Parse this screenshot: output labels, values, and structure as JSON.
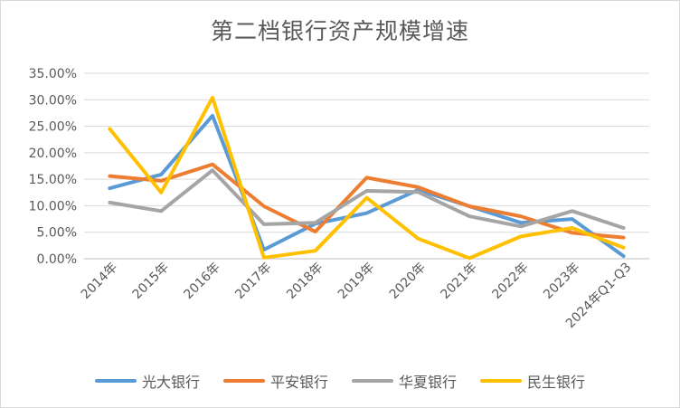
{
  "chart_data": {
    "type": "line",
    "title": "第二档银行资产规模增速",
    "xlabel": "",
    "ylabel": "",
    "categories": [
      "2014年",
      "2015年",
      "2016年",
      "2017年",
      "2018年",
      "2019年",
      "2020年",
      "2021年",
      "2022年",
      "2023年",
      "2024年Q1-Q3"
    ],
    "ylim": [
      0,
      35
    ],
    "yticks": [
      "0.00%",
      "5.00%",
      "10.00%",
      "15.00%",
      "20.00%",
      "25.00%",
      "30.00%",
      "35.00%"
    ],
    "grid": true,
    "legend_position": "bottom",
    "series": [
      {
        "name": "光大银行",
        "color": "#5B9BD5",
        "values": [
          13.3,
          15.9,
          27.0,
          1.7,
          6.6,
          8.6,
          13.0,
          9.9,
          6.8,
          7.5,
          0.5
        ]
      },
      {
        "name": "平安银行",
        "color": "#ED7D31",
        "values": [
          15.6,
          14.7,
          17.8,
          9.9,
          5.1,
          15.3,
          13.5,
          9.9,
          8.0,
          4.9,
          4.0
        ]
      },
      {
        "name": "华夏银行",
        "color": "#A5A5A5",
        "values": [
          10.6,
          9.0,
          16.7,
          6.5,
          6.8,
          12.8,
          12.6,
          8.0,
          6.1,
          9.0,
          5.8
        ]
      },
      {
        "name": "民生银行",
        "color": "#FFC000",
        "values": [
          24.5,
          12.5,
          30.4,
          0.2,
          1.5,
          11.5,
          3.8,
          0.1,
          4.2,
          5.8,
          2.1
        ]
      }
    ]
  }
}
